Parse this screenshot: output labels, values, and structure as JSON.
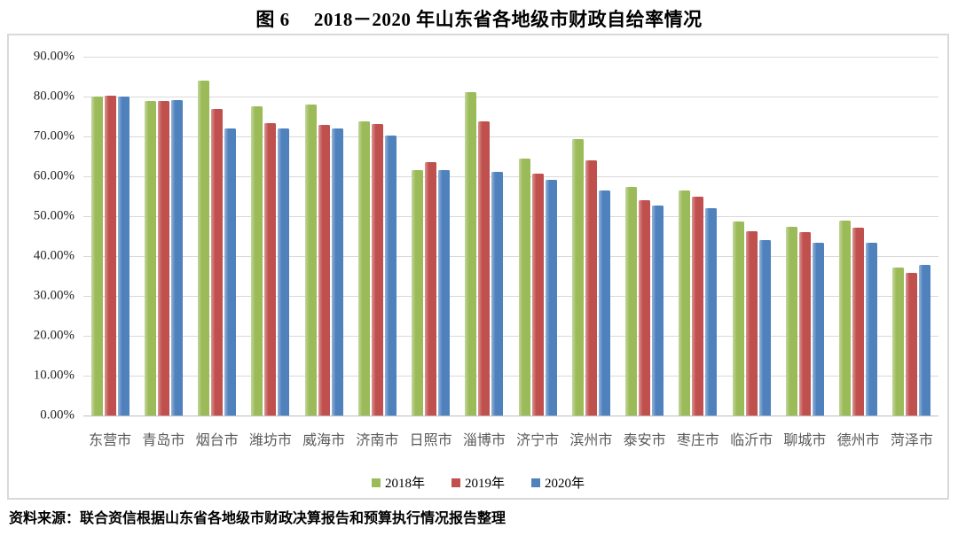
{
  "title": "图 6　 2018－2020 年山东省各地级市财政自给率情况",
  "source_note": "资料来源：联合资信根据山东省各地级市财政决算报告和预算执行情况报告整理",
  "chart_data": {
    "type": "bar",
    "title": "图 6　 2018－2020 年山东省各地级市财政自给率情况",
    "categories": [
      "东营市",
      "青岛市",
      "烟台市",
      "潍坊市",
      "威海市",
      "济南市",
      "日照市",
      "淄博市",
      "济宁市",
      "滨州市",
      "泰安市",
      "枣庄市",
      "临沂市",
      "聊城市",
      "德州市",
      "菏泽市"
    ],
    "series": [
      {
        "name": "2018年",
        "color": "#9BBB59",
        "values": [
          79.9,
          79.0,
          84.0,
          77.5,
          77.9,
          73.8,
          61.5,
          81.2,
          64.4,
          69.4,
          57.4,
          56.4,
          48.7,
          47.4,
          48.9,
          37.1
        ]
      },
      {
        "name": "2019年",
        "color": "#C0504D",
        "values": [
          80.3,
          78.8,
          76.9,
          73.4,
          72.8,
          73.1,
          63.6,
          73.7,
          60.7,
          63.9,
          54.1,
          55.0,
          46.3,
          46.0,
          47.2,
          35.8
        ]
      },
      {
        "name": "2020年",
        "color": "#4F81BD",
        "values": [
          80.1,
          79.1,
          72.0,
          72.0,
          72.0,
          70.2,
          61.6,
          61.2,
          59.1,
          56.5,
          52.6,
          51.9,
          44.1,
          43.4,
          43.4,
          37.8
        ]
      }
    ],
    "ylabel": "",
    "xlabel": "",
    "ylim": [
      0,
      90
    ],
    "ytick_step": 10,
    "ytick_labels": [
      "90.00%",
      "80.00%",
      "70.00%",
      "60.00%",
      "50.00%",
      "40.00%",
      "30.00%",
      "20.00%",
      "10.00%",
      "0.00%"
    ],
    "grid": true,
    "legend_position": "bottom",
    "gridline_color": "#D9D9D9",
    "axis_label_color": "#595959"
  }
}
